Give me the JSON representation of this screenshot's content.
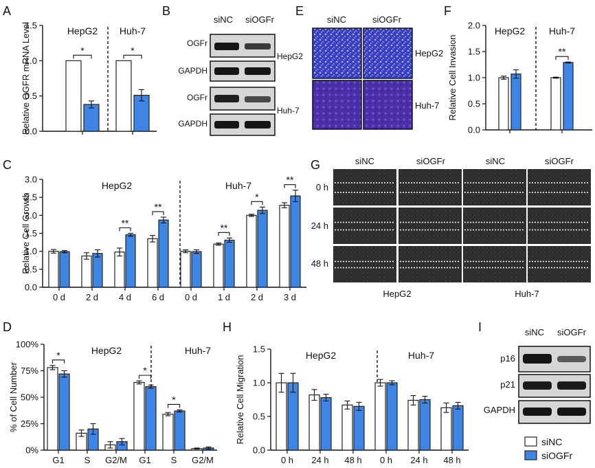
{
  "colors": {
    "sinc": "#ffffff",
    "siogfr": "#3d86e8",
    "edge": "#222222",
    "invasion_stain": "#3a3fbf",
    "wound_bg": "#2b2b2b",
    "blot_bg": "#d9d9d9",
    "band": "#1a1a1a"
  },
  "panel_letters": {
    "a": "A",
    "b": "B",
    "c": "C",
    "d": "D",
    "e": "E",
    "f": "F",
    "g": "G",
    "h": "H",
    "i": "I"
  },
  "groups": {
    "sinc": "siNC",
    "siogfr": "siOGFr"
  },
  "cells": {
    "hepg2": "HepG2",
    "huh7": "Huh-7"
  },
  "sig": {
    "one": "*",
    "two": "**"
  },
  "panel_b": {
    "labels": [
      "siNC",
      "siOGFr"
    ],
    "rows": [
      "OGFr",
      "GAPDH",
      "OGFr",
      "GAPDH"
    ]
  },
  "panel_e": {
    "labels": [
      "siNC",
      "siOGFr"
    ],
    "rows": [
      "HepG2",
      "Huh-7"
    ]
  },
  "panel_g": {
    "labels": [
      "siNC",
      "siOGFr",
      "siNC",
      "siOGFr"
    ],
    "times": [
      "0 h",
      "24 h",
      "48 h"
    ],
    "bottom": [
      "HepG2",
      "Huh-7"
    ]
  },
  "panel_i": {
    "labels": [
      "siNC",
      "siOGFr"
    ],
    "rows": [
      "p16",
      "p21",
      "GAPDH"
    ]
  },
  "legend": {
    "sinc": "siNC",
    "siogfr": "siOGFr"
  },
  "chart_data": [
    {
      "id": "A",
      "type": "bar",
      "ylabel": "Relative OGFR mRNA Level",
      "ylim": [
        0,
        1.5
      ],
      "yticks": [
        {
          "v": 0,
          "t": "0.0"
        },
        {
          "v": 0.5,
          "t": "0.5"
        },
        {
          "v": 1.0,
          "t": "1.0"
        },
        {
          "v": 1.5,
          "t": "1.5"
        }
      ],
      "groups": [
        {
          "label": "HepG2",
          "series": [
            {
              "name": "siNC",
              "value": 1.0,
              "err": 0
            },
            {
              "name": "siOGFr",
              "value": 0.38,
              "err": 0.05
            }
          ],
          "sig": "*"
        },
        {
          "label": "Huh-7",
          "series": [
            {
              "name": "siNC",
              "value": 1.0,
              "err": 0
            },
            {
              "name": "siOGFr",
              "value": 0.51,
              "err": 0.08
            }
          ],
          "sig": "*"
        }
      ]
    },
    {
      "id": "F",
      "type": "bar",
      "ylabel": "Relative Cell Invasion",
      "ylim": [
        0,
        2.0
      ],
      "yticks": [
        {
          "v": 0,
          "t": "0.0"
        },
        {
          "v": 0.5,
          "t": "0.5"
        },
        {
          "v": 1.0,
          "t": "1.0"
        },
        {
          "v": 1.5,
          "t": "1.5"
        },
        {
          "v": 2.0,
          "t": "2.0"
        }
      ],
      "groups": [
        {
          "label": "HepG2",
          "series": [
            {
              "name": "siNC",
              "value": 1.0,
              "err": 0.03
            },
            {
              "name": "siOGFr",
              "value": 1.07,
              "err": 0.08
            }
          ],
          "sig": ""
        },
        {
          "label": "Huh-7",
          "series": [
            {
              "name": "siNC",
              "value": 1.0,
              "err": 0.01
            },
            {
              "name": "siOGFr",
              "value": 1.29,
              "err": 0.01
            }
          ],
          "sig": "**"
        }
      ]
    },
    {
      "id": "C",
      "type": "bar",
      "ylabel": "Relative Cell Growth",
      "ylim": [
        0,
        3.0
      ],
      "yticks": [
        {
          "v": 0,
          "t": "0.0"
        },
        {
          "v": 0.5,
          "t": "0.5"
        },
        {
          "v": 1.0,
          "t": "1.0"
        },
        {
          "v": 1.5,
          "t": "1.5"
        },
        {
          "v": 2.0,
          "t": "2.0"
        },
        {
          "v": 2.5,
          "t": "2.5"
        },
        {
          "v": 3.0,
          "t": "3.0"
        }
      ],
      "sections": [
        "HepG2",
        "Huh-7"
      ],
      "categories": [
        "0 d",
        "2 d",
        "4 d",
        "6 d",
        "0 d",
        "1 d",
        "2 d",
        "3 d"
      ],
      "series": [
        {
          "name": "siNC",
          "values": [
            1.0,
            0.87,
            0.98,
            1.35,
            1.0,
            1.2,
            2.0,
            2.28
          ],
          "errors": [
            0.05,
            0.09,
            0.11,
            0.09,
            0.04,
            0.03,
            0.03,
            0.07
          ]
        },
        {
          "name": "siOGFr",
          "values": [
            0.99,
            0.94,
            1.46,
            1.87,
            0.99,
            1.31,
            2.14,
            2.54
          ],
          "errors": [
            0.03,
            0.1,
            0.04,
            0.08,
            0.05,
            0.06,
            0.09,
            0.16
          ]
        }
      ],
      "sig": [
        "",
        "",
        "**",
        "**",
        "",
        "**",
        "*",
        "**"
      ]
    },
    {
      "id": "D",
      "type": "bar",
      "ylabel": "% of Cell Number",
      "ylim": [
        0,
        100
      ],
      "yticks": [
        {
          "v": 0,
          "t": "0%"
        },
        {
          "v": 25,
          "t": "25%"
        },
        {
          "v": 50,
          "t": "50%"
        },
        {
          "v": 75,
          "t": "75%"
        },
        {
          "v": 100,
          "t": "100%"
        }
      ],
      "sections": [
        "HepG2",
        "Huh-7"
      ],
      "categories": [
        "G1",
        "S",
        "G2/M",
        "G1",
        "S",
        "G2/M"
      ],
      "series": [
        {
          "name": "siNC",
          "values": [
            78,
            16,
            5,
            64,
            34,
            1.5
          ],
          "errors": [
            2,
            3,
            3,
            1.5,
            1.5,
            0.5
          ]
        },
        {
          "name": "siOGFr",
          "values": [
            72,
            20,
            8,
            60,
            37,
            2
          ],
          "errors": [
            3,
            5,
            3,
            1.5,
            1,
            1
          ]
        }
      ],
      "sig": [
        "*",
        "",
        "",
        "*",
        "*",
        ""
      ]
    },
    {
      "id": "H",
      "type": "bar",
      "ylabel": "Relative Cell Migration",
      "ylim": [
        0,
        1.5
      ],
      "yticks": [
        {
          "v": 0,
          "t": "0.0"
        },
        {
          "v": 0.5,
          "t": "0.5"
        },
        {
          "v": 1.0,
          "t": "1.0"
        },
        {
          "v": 1.5,
          "t": "1.5"
        }
      ],
      "sections": [
        "HepG2",
        "Huh-7"
      ],
      "categories": [
        "0 h",
        "24 h",
        "48 h",
        "0 h",
        "24 h",
        "48 h"
      ],
      "series": [
        {
          "name": "siNC",
          "values": [
            1.0,
            0.82,
            0.67,
            1.0,
            0.74,
            0.63
          ],
          "errors": [
            0.14,
            0.08,
            0.06,
            0.05,
            0.07,
            0.07
          ]
        },
        {
          "name": "siOGFr",
          "values": [
            1.0,
            0.78,
            0.65,
            1.0,
            0.75,
            0.66
          ],
          "errors": [
            0.14,
            0.05,
            0.06,
            0.03,
            0.05,
            0.05
          ]
        }
      ],
      "sig": [
        "",
        "",
        "",
        "",
        "",
        ""
      ]
    }
  ]
}
